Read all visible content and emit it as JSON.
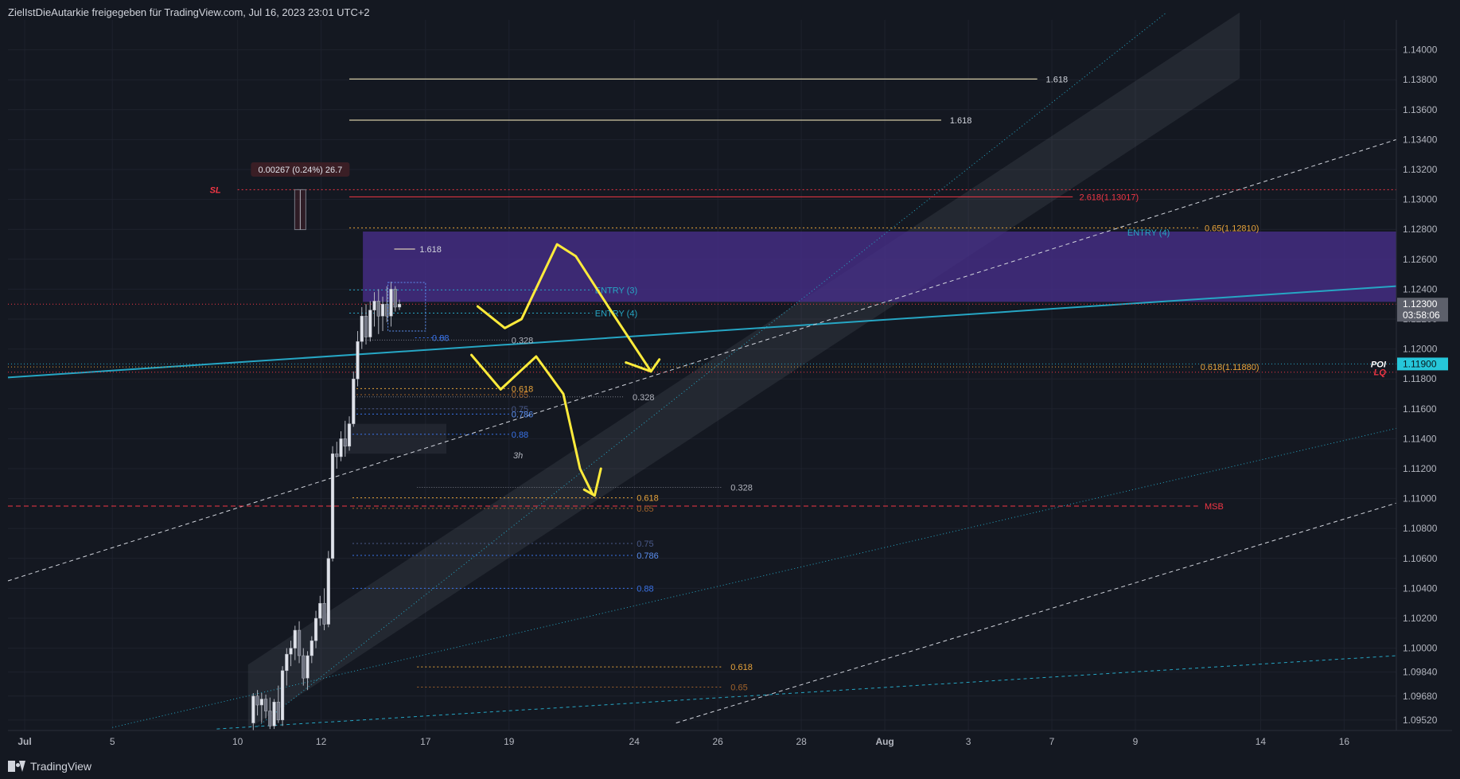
{
  "header": {
    "title": "ZielIstDieAutarkie freigegeben für TradingView.com, Jul 16, 2023 23:01 UTC+2"
  },
  "footer": {
    "brand": "TradingView",
    "logo_icon": "tradingview-logo-icon"
  },
  "colors": {
    "background": "#141821",
    "grid": "#1e222d",
    "candle": "#b2b5be",
    "yellow": "#ffeb3b",
    "purple_zone": "#4a2f8f",
    "teal": "#26a6c4",
    "red": "#f23645",
    "orange": "#e8a33a",
    "blue": "#3a73e8"
  },
  "chart_data": {
    "type": "candlestick",
    "title": "",
    "y_range": [
      1.0945,
      1.142
    ],
    "y_ticks": [
      "1.14000",
      "1.13800",
      "1.13600",
      "1.13400",
      "1.13200",
      "1.13000",
      "1.12800",
      "1.12600",
      "1.12400",
      "1.12200",
      "1.12000",
      "1.11800",
      "1.11600",
      "1.11400",
      "1.11200",
      "1.11000",
      "1.10800",
      "1.10600",
      "1.10400",
      "1.10200",
      "1.10000",
      "1.09840",
      "1.09680",
      "1.09520"
    ],
    "x_labels": [
      "Jul",
      "5",
      "10",
      "12",
      "17",
      "19",
      "24",
      "26",
      "28",
      "Aug",
      "3",
      "7",
      "9",
      "14",
      "16"
    ],
    "x_label_positions": [
      0.8,
      5,
      11,
      15,
      20,
      24,
      30,
      34,
      38,
      42,
      46,
      50,
      54,
      60,
      64
    ],
    "x_bold": [
      "Jul",
      "Aug"
    ],
    "current_price": "1.12300",
    "countdown": "03:58:06",
    "poi_price": "1.11900",
    "candles": [
      {
        "t": 11.75,
        "o": 1.095,
        "h": 1.097,
        "l": 1.0945,
        "c": 1.0968
      },
      {
        "t": 11.95,
        "o": 1.0968,
        "h": 1.0972,
        "l": 1.0955,
        "c": 1.0962
      },
      {
        "t": 12.15,
        "o": 1.0962,
        "h": 1.097,
        "l": 1.095,
        "c": 1.0966
      },
      {
        "t": 12.35,
        "o": 1.0966,
        "h": 1.0969,
        "l": 1.0953,
        "c": 1.0958
      },
      {
        "t": 12.55,
        "o": 1.0958,
        "h": 1.0967,
        "l": 1.0946,
        "c": 1.0948
      },
      {
        "t": 12.75,
        "o": 1.0948,
        "h": 1.0966,
        "l": 1.0946,
        "c": 1.0964
      },
      {
        "t": 12.95,
        "o": 1.0964,
        "h": 1.0975,
        "l": 1.095,
        "c": 1.0952
      },
      {
        "t": 13.15,
        "o": 1.0952,
        "h": 1.0988,
        "l": 1.0948,
        "c": 1.0985
      },
      {
        "t": 13.35,
        "o": 1.0985,
        "h": 1.1,
        "l": 1.0975,
        "c": 1.0996
      },
      {
        "t": 13.55,
        "o": 1.0996,
        "h": 1.1005,
        "l": 1.0988,
        "c": 1.1
      },
      {
        "t": 13.75,
        "o": 1.1,
        "h": 1.1015,
        "l": 1.0992,
        "c": 1.1012
      },
      {
        "t": 13.95,
        "o": 1.1012,
        "h": 1.1018,
        "l": 1.099,
        "c": 1.0995
      },
      {
        "t": 14.15,
        "o": 1.0995,
        "h": 1.1,
        "l": 1.0975,
        "c": 1.098
      },
      {
        "t": 14.35,
        "o": 1.098,
        "h": 1.0998,
        "l": 1.0972,
        "c": 1.0995
      },
      {
        "t": 14.55,
        "o": 1.0995,
        "h": 1.1008,
        "l": 1.099,
        "c": 1.1005
      },
      {
        "t": 14.75,
        "o": 1.1005,
        "h": 1.1025,
        "l": 1.1,
        "c": 1.102
      },
      {
        "t": 14.95,
        "o": 1.102,
        "h": 1.1035,
        "l": 1.1015,
        "c": 1.103
      },
      {
        "t": 15.15,
        "o": 1.103,
        "h": 1.104,
        "l": 1.1012,
        "c": 1.1016
      },
      {
        "t": 15.35,
        "o": 1.1016,
        "h": 1.1065,
        "l": 1.1014,
        "c": 1.106
      },
      {
        "t": 15.55,
        "o": 1.106,
        "h": 1.1135,
        "l": 1.1058,
        "c": 1.113
      },
      {
        "t": 15.75,
        "o": 1.113,
        "h": 1.1138,
        "l": 1.112,
        "c": 1.1128
      },
      {
        "t": 15.95,
        "o": 1.1128,
        "h": 1.1145,
        "l": 1.1125,
        "c": 1.114
      },
      {
        "t": 16.15,
        "o": 1.114,
        "h": 1.1152,
        "l": 1.1128,
        "c": 1.1135
      },
      {
        "t": 16.35,
        "o": 1.1135,
        "h": 1.1155,
        "l": 1.1132,
        "c": 1.115
      },
      {
        "t": 16.55,
        "o": 1.115,
        "h": 1.1185,
        "l": 1.1148,
        "c": 1.118
      },
      {
        "t": 16.75,
        "o": 1.118,
        "h": 1.1212,
        "l": 1.1175,
        "c": 1.1205
      },
      {
        "t": 16.95,
        "o": 1.1205,
        "h": 1.1228,
        "l": 1.12,
        "c": 1.1222
      },
      {
        "t": 17.15,
        "o": 1.1222,
        "h": 1.123,
        "l": 1.1203,
        "c": 1.1208
      },
      {
        "t": 17.35,
        "o": 1.1208,
        "h": 1.1232,
        "l": 1.1205,
        "c": 1.1226
      },
      {
        "t": 17.55,
        "o": 1.1226,
        "h": 1.1238,
        "l": 1.1215,
        "c": 1.1232
      },
      {
        "t": 17.75,
        "o": 1.1232,
        "h": 1.124,
        "l": 1.121,
        "c": 1.1222
      },
      {
        "t": 17.95,
        "o": 1.1222,
        "h": 1.1235,
        "l": 1.1212,
        "c": 1.123
      },
      {
        "t": 18.15,
        "o": 1.123,
        "h": 1.1242,
        "l": 1.1218,
        "c": 1.1222
      },
      {
        "t": 18.35,
        "o": 1.1222,
        "h": 1.1245,
        "l": 1.1215,
        "c": 1.124
      },
      {
        "t": 18.55,
        "o": 1.124,
        "h": 1.1242,
        "l": 1.1225,
        "c": 1.1228
      },
      {
        "t": 18.75,
        "o": 1.1228,
        "h": 1.1233,
        "l": 1.1226,
        "c": 1.123
      }
    ],
    "zones": [
      {
        "name": "entry-zone",
        "t1": 17.0,
        "t2": 66.5,
        "p1": 1.12785,
        "p2": 1.12315,
        "color": "#4a2f8f",
        "opacity": 0.75
      },
      {
        "name": "grey-box-3h",
        "t1": 16.1,
        "t2": 21.0,
        "p1": 1.115,
        "p2": 1.113,
        "color": "#2a2e39",
        "opacity": 0.6
      }
    ],
    "horizontal_lines": [
      {
        "name": "sl-line",
        "t1": 11.0,
        "t2": 66.5,
        "p": 1.13065,
        "color": "#f23645",
        "dash": "2,3",
        "label": "SL",
        "label_t": 10.2,
        "label_color": "#f23645",
        "label_anchor": "end",
        "italic": true
      },
      {
        "name": "fib-1618-top",
        "t1": 16.35,
        "t2": 49.3,
        "p": 1.13805,
        "color": "#fff3c4",
        "dash": "",
        "label": "1.618",
        "label_t": 49.6,
        "label_color": "#d1d4dc"
      },
      {
        "name": "fib-1618-second",
        "t1": 16.35,
        "t2": 44.7,
        "p": 1.1353,
        "color": "#fff3c4",
        "dash": "",
        "label": "1.618",
        "label_t": 45.0,
        "label_color": "#d1d4dc"
      },
      {
        "name": "fib-2618",
        "t1": 16.35,
        "t2": 51.0,
        "p": 1.13017,
        "color": "#f23645",
        "dash": "",
        "label": "2.618(1.13017)",
        "label_t": 51.2,
        "label_color": "#f23645"
      },
      {
        "name": "fib-065-top",
        "t1": 16.35,
        "t2": 57.0,
        "p": 1.1281,
        "color": "#e8a33a",
        "dash": "2,3",
        "label": "0.65(1.12810)",
        "label_t": 57.2,
        "label_color": "#e8a33a"
      },
      {
        "name": "entry-4-label-line",
        "t1": 53.5,
        "t2": 53.5,
        "p": 1.1278,
        "color": "#26a6c4",
        "dash": "",
        "label": "ENTRY (4)",
        "label_t": 53.5,
        "label_color": "#26a6c4"
      },
      {
        "name": "small-1618",
        "t1": 18.5,
        "t2": 19.5,
        "p": 1.12668,
        "color": "#fff3c4",
        "dash": "",
        "label": "1.618",
        "label_t": 19.6,
        "label_color": "#d1d4dc"
      },
      {
        "name": "entry-3",
        "t1": 16.35,
        "t2": 28.0,
        "p": 1.12395,
        "color": "#26a6c4",
        "dash": "2,3",
        "label": "ENTRY (3)",
        "label_t": 28.0,
        "label_color": "#26a6c4"
      },
      {
        "name": "current-price-line",
        "t1": 0.0,
        "t2": 66.5,
        "p": 1.123,
        "color": "#f23645",
        "dash": "1,3",
        "label": "",
        "label_t": 0,
        "label_color": "#d1d4dc"
      },
      {
        "name": "entry-4-lower",
        "t1": 16.35,
        "t2": 28.0,
        "p": 1.1224,
        "color": "#26a6c4",
        "dash": "2,3",
        "label": "ENTRY (4)",
        "label_t": 28.0,
        "label_color": "#26a6c4"
      },
      {
        "name": "fib-088-a",
        "t1": 19.5,
        "t2": 21.0,
        "p": 1.12075,
        "color": "#3a73e8",
        "dash": "2,3",
        "label": "0.88",
        "label_t": 20.2,
        "label_color": "#3a73e8"
      },
      {
        "name": "fib-0328-a",
        "t1": 17.0,
        "t2": 24.0,
        "p": 1.1206,
        "color": "#787b86",
        "dash": "1,2",
        "label": "0.328",
        "label_t": 24.0,
        "label_color": "#b2b5be"
      },
      {
        "name": "poi-line",
        "t1": 0.0,
        "t2": 66.5,
        "p": 1.119,
        "color": "#26a6c4",
        "dash": "1,3",
        "label": "POI",
        "label_t": 66.0,
        "label_color": "#ffffff",
        "label_anchor": "end",
        "italic": true
      },
      {
        "name": "fib-0618-1188",
        "t1": 0.0,
        "t2": 56.8,
        "p": 1.1188,
        "color": "#e8a33a",
        "dash": "1,3",
        "label": "0.618(1.11880)",
        "label_t": 57.0,
        "label_color": "#e8a33a"
      },
      {
        "name": "lq-line",
        "t1": 0.0,
        "t2": 66.5,
        "p": 1.11845,
        "color": "#f23645",
        "dash": "1,3",
        "label": "LQ",
        "label_t": 66.0,
        "label_color": "#f23645",
        "label_anchor": "end",
        "italic": true
      },
      {
        "name": "fib-0618-a",
        "t1": 16.5,
        "t2": 24.0,
        "p": 1.11735,
        "color": "#e8a33a",
        "dash": "2,3",
        "label": "0.618",
        "label_t": 24.0,
        "label_color": "#e8a33a"
      },
      {
        "name": "fib-065-a",
        "t1": 16.5,
        "t2": 24.0,
        "p": 1.11695,
        "color": "#a0622a",
        "dash": "2,3",
        "label": "0.65",
        "label_t": 24.0,
        "label_color": "#a0622a"
      },
      {
        "name": "fib-0328-b",
        "t1": 16.5,
        "t2": 29.5,
        "p": 1.1168,
        "color": "#787b86",
        "dash": "1,2",
        "label": "0.328",
        "label_t": 29.8,
        "label_color": "#b2b5be"
      },
      {
        "name": "fib-075-a",
        "t1": 16.5,
        "t2": 24.0,
        "p": 1.116,
        "color": "#4a5a8a",
        "dash": "2,3",
        "label": "0.75",
        "label_t": 24.0,
        "label_color": "#4a5a8a"
      },
      {
        "name": "fib-0786-a",
        "t1": 16.5,
        "t2": 24.0,
        "p": 1.11565,
        "color": "#3a73e8",
        "dash": "2,3",
        "label": "0.786",
        "label_t": 24.0,
        "label_color": "#5b8ff0"
      },
      {
        "name": "fib-088-b",
        "t1": 16.5,
        "t2": 24.0,
        "p": 1.1143,
        "color": "#3a73e8",
        "dash": "2,3",
        "label": "0.88",
        "label_t": 24.0,
        "label_color": "#3a73e8"
      },
      {
        "name": "fib-0328-c",
        "t1": 19.6,
        "t2": 34.2,
        "p": 1.11075,
        "color": "#787b86",
        "dash": "1,2",
        "label": "0.328",
        "label_t": 34.5,
        "label_color": "#b2b5be"
      },
      {
        "name": "fib-0618-b",
        "t1": 16.5,
        "t2": 30.0,
        "p": 1.11005,
        "color": "#e8a33a",
        "dash": "2,3",
        "label": "0.618",
        "label_t": 30.0,
        "label_color": "#e8a33a"
      },
      {
        "name": "msb-line",
        "t1": 0.0,
        "t2": 57.0,
        "p": 1.1095,
        "color": "#f23645",
        "dash": "6,4",
        "label": "MSB",
        "label_t": 57.2,
        "label_color": "#f23645"
      },
      {
        "name": "fib-065-b",
        "t1": 16.5,
        "t2": 30.0,
        "p": 1.10935,
        "color": "#a0622a",
        "dash": "2,3",
        "label": "0.65",
        "label_t": 30.0,
        "label_color": "#a0622a"
      },
      {
        "name": "fib-075-b",
        "t1": 16.5,
        "t2": 30.0,
        "p": 1.107,
        "color": "#4a5a8a",
        "dash": "2,3",
        "label": "0.75",
        "label_t": 30.0,
        "label_color": "#4a5a8a"
      },
      {
        "name": "fib-0786-b",
        "t1": 16.5,
        "t2": 30.0,
        "p": 1.1062,
        "color": "#3a73e8",
        "dash": "2,3",
        "label": "0.786",
        "label_t": 30.0,
        "label_color": "#5b8ff0"
      },
      {
        "name": "fib-088-c",
        "t1": 16.5,
        "t2": 30.0,
        "p": 1.104,
        "color": "#3a73e8",
        "dash": "2,3",
        "label": "0.88",
        "label_t": 30.0,
        "label_color": "#3a73e8"
      },
      {
        "name": "fib-0618-c",
        "t1": 19.6,
        "t2": 34.2,
        "p": 1.09875,
        "color": "#e8a33a",
        "dash": "2,3",
        "label": "0.618",
        "label_t": 34.5,
        "label_color": "#e8a33a"
      },
      {
        "name": "fib-065-c",
        "t1": 19.6,
        "t2": 34.2,
        "p": 1.0974,
        "color": "#a0622a",
        "dash": "2,3",
        "label": "0.65",
        "label_t": 34.5,
        "label_color": "#a0622a"
      }
    ],
    "trend_lines": [
      {
        "name": "teal-trendline",
        "t1": 0.0,
        "p1": 1.1181,
        "t2": 66.5,
        "p2": 1.1242,
        "color": "#26a6c4",
        "dash": "",
        "width": 2
      },
      {
        "name": "white-dashed-upper",
        "t1": 0.0,
        "p1": 1.1045,
        "t2": 66.5,
        "p2": 1.134,
        "color": "#d1d4dc",
        "dash": "5,4",
        "width": 1
      },
      {
        "name": "white-dashed-lower",
        "t1": 32.0,
        "p1": 1.095,
        "t2": 66.5,
        "p2": 1.1097,
        "color": "#d1d4dc",
        "dash": "5,4",
        "width": 1
      },
      {
        "name": "teal-dotted-lower",
        "t1": 5.0,
        "p1": 1.0947,
        "t2": 66.5,
        "p2": 1.1147,
        "color": "#26a6c4",
        "dash": "1,3",
        "width": 1
      },
      {
        "name": "teal-dashed-bottom",
        "t1": 10.0,
        "p1": 1.0946,
        "t2": 66.5,
        "p2": 1.0995,
        "color": "#26a6c4",
        "dash": "4,4",
        "width": 1
      },
      {
        "name": "channel-center",
        "t1": 12.0,
        "p1": 1.0948,
        "t2": 55.5,
        "p2": 1.1425,
        "color": "#26a6c4",
        "dash": "1,3",
        "width": 1
      }
    ],
    "channel": {
      "t1": 11.5,
      "p1_top": 1.0989,
      "p1_bot": 1.0946,
      "t2": 59.0,
      "p2_top": 1.1425,
      "p2_bot": 1.1381
    },
    "measure": {
      "t": 14.0,
      "p_top": 1.13065,
      "p_bot": 1.12798,
      "label": "0.00267 (0.24%) 26.7",
      "label_t": 14.0,
      "label_p": 1.13195
    },
    "range_bracket": {
      "t1": 18.2,
      "t2": 20.0,
      "p_top": 1.12445,
      "p_bot": 1.1212
    },
    "text_labels": [
      {
        "name": "label-3h",
        "text": "3h",
        "t": 24.2,
        "p": 1.1127,
        "color": "#b2b5be",
        "italic": true
      }
    ],
    "drawings": [
      {
        "name": "yellow-arrow-upper",
        "points": [
          [
            22.5,
            1.12285
          ],
          [
            23.8,
            1.1214
          ],
          [
            24.6,
            1.122
          ],
          [
            26.3,
            1.127
          ],
          [
            27.2,
            1.1262
          ],
          [
            29.0,
            1.1223
          ],
          [
            30.8,
            1.1185
          ]
        ],
        "head": [
          [
            29.6,
            1.1191
          ],
          [
            30.8,
            1.1185
          ],
          [
            31.2,
            1.1193
          ]
        ]
      },
      {
        "name": "yellow-arrow-lower",
        "points": [
          [
            22.2,
            1.1196
          ],
          [
            23.6,
            1.1173
          ],
          [
            24.6,
            1.1186
          ],
          [
            25.3,
            1.1195
          ],
          [
            26.6,
            1.117
          ],
          [
            27.4,
            1.112
          ],
          [
            28.0,
            1.1103
          ]
        ],
        "head": [
          [
            27.6,
            1.1106
          ],
          [
            28.1,
            1.1102
          ],
          [
            28.4,
            1.112
          ]
        ]
      }
    ]
  }
}
